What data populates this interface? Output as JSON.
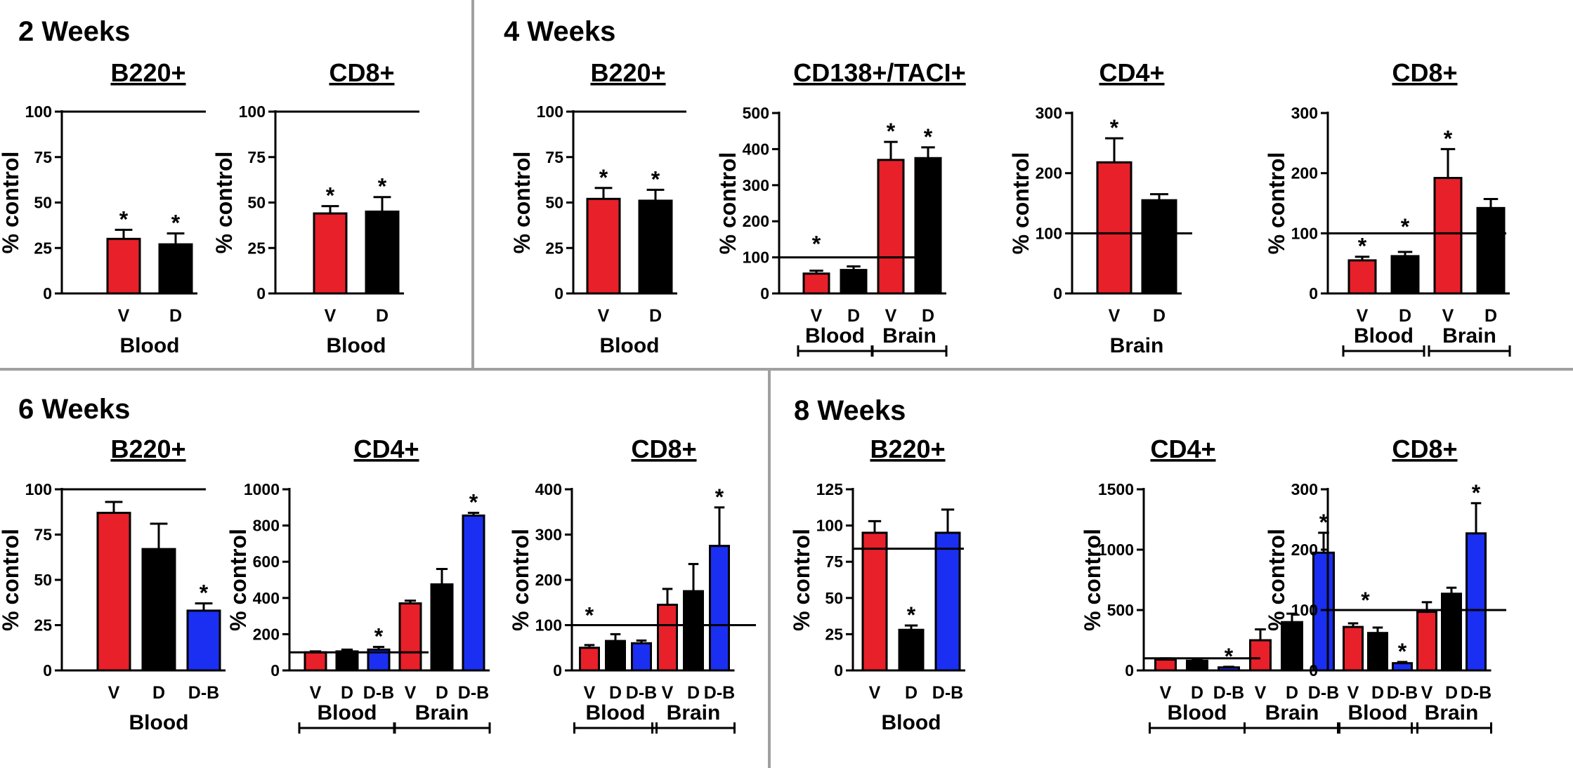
{
  "sections": [
    {
      "title": "2 Weeks"
    },
    {
      "title": "4 Weeks"
    },
    {
      "title": "6 Weeks"
    },
    {
      "title": "8 Weeks"
    }
  ],
  "colors": {
    "V": "#e8202a",
    "D": "#000000",
    "D-B": "#1a2ff2",
    "line": "#000000",
    "divider": "#a0a0a0"
  },
  "chart_data": [
    {
      "type": "bar",
      "section": "2 Weeks",
      "title": "B220+",
      "ylabel": "% control",
      "ylim": [
        0,
        100
      ],
      "yticks": [
        "0",
        "25",
        "50",
        "75",
        "100"
      ],
      "reference_line": 100,
      "categories": [
        "V",
        "D"
      ],
      "colors": [
        "V",
        "D"
      ],
      "values": [
        30,
        27
      ],
      "errors": [
        5,
        6
      ],
      "significant": [
        true,
        true
      ],
      "groups": [
        {
          "label": "Blood",
          "from": 0,
          "to": 1
        }
      ],
      "group_brackets": false,
      "extra_stars": []
    },
    {
      "type": "bar",
      "section": "2 Weeks",
      "title": "CD8+",
      "ylabel": "% control",
      "ylim": [
        0,
        100
      ],
      "yticks": [
        "0",
        "25",
        "50",
        "75",
        "100"
      ],
      "reference_line": 100,
      "categories": [
        "V",
        "D"
      ],
      "colors": [
        "V",
        "D"
      ],
      "values": [
        44,
        45
      ],
      "errors": [
        4,
        8
      ],
      "significant": [
        true,
        true
      ],
      "groups": [
        {
          "label": "Blood",
          "from": 0,
          "to": 1
        }
      ],
      "group_brackets": false,
      "extra_stars": []
    },
    {
      "type": "bar",
      "section": "4 Weeks",
      "title": "B220+",
      "ylabel": "% control",
      "ylim": [
        0,
        100
      ],
      "yticks": [
        "0",
        "25",
        "50",
        "75",
        "100"
      ],
      "reference_line": 100,
      "categories": [
        "V",
        "D"
      ],
      "colors": [
        "V",
        "D"
      ],
      "values": [
        52,
        51
      ],
      "errors": [
        6,
        6
      ],
      "significant": [
        true,
        true
      ],
      "groups": [
        {
          "label": "Blood",
          "from": 0,
          "to": 1
        }
      ],
      "group_brackets": false,
      "extra_stars": []
    },
    {
      "type": "bar",
      "section": "4 Weeks",
      "title": "CD138+/TACI+",
      "ylabel": "% control",
      "ylim": [
        0,
        500
      ],
      "yticks": [
        "0",
        "100",
        "200",
        "300",
        "400",
        "500"
      ],
      "reference_line": 100,
      "categories": [
        "V",
        "D",
        "V",
        "D"
      ],
      "colors": [
        "V",
        "D",
        "V",
        "D"
      ],
      "values": [
        55,
        65,
        370,
        375
      ],
      "errors": [
        8,
        10,
        50,
        30
      ],
      "significant": [
        false,
        false,
        true,
        true
      ],
      "groups": [
        {
          "label": "Blood",
          "from": 0,
          "to": 1
        },
        {
          "label": "Brain",
          "from": 2,
          "to": 3
        }
      ],
      "group_brackets": true,
      "extra_stars": [
        {
          "x": 0,
          "y": 135
        }
      ]
    },
    {
      "type": "bar",
      "section": "4 Weeks",
      "title": "CD4+",
      "ylabel": "% control",
      "ylim": [
        0,
        300
      ],
      "yticks": [
        "0",
        "100",
        "200",
        "300"
      ],
      "reference_line": 100,
      "categories": [
        "V",
        "D"
      ],
      "colors": [
        "V",
        "D"
      ],
      "values": [
        218,
        155
      ],
      "errors": [
        40,
        10
      ],
      "significant": [
        true,
        false
      ],
      "groups": [
        {
          "label": "Brain",
          "from": 0,
          "to": 1
        }
      ],
      "group_brackets": false,
      "extra_stars": []
    },
    {
      "type": "bar",
      "section": "4 Weeks",
      "title": "CD8+",
      "ylabel": "% control",
      "ylim": [
        0,
        300
      ],
      "yticks": [
        "0",
        "100",
        "200",
        "300"
      ],
      "reference_line": 100,
      "categories": [
        "V",
        "D",
        "V",
        "D"
      ],
      "colors": [
        "V",
        "D",
        "V",
        "D"
      ],
      "values": [
        55,
        62,
        192,
        142
      ],
      "errors": [
        6,
        7,
        48,
        15
      ],
      "significant": [
        true,
        false,
        true,
        false
      ],
      "groups": [
        {
          "label": "Blood",
          "from": 0,
          "to": 1
        },
        {
          "label": "Brain",
          "from": 2,
          "to": 3
        }
      ],
      "group_brackets": true,
      "extra_stars": [
        {
          "x": 1,
          "y": 110
        }
      ]
    },
    {
      "type": "bar",
      "section": "6 Weeks",
      "title": "B220+",
      "ylabel": "% control",
      "ylim": [
        0,
        100
      ],
      "yticks": [
        "0",
        "25",
        "50",
        "75",
        "100"
      ],
      "reference_line": 100,
      "categories": [
        "V",
        "D",
        "D-B"
      ],
      "colors": [
        "V",
        "D",
        "D-B"
      ],
      "values": [
        87,
        67,
        33
      ],
      "errors": [
        6,
        14,
        4
      ],
      "significant": [
        false,
        false,
        true
      ],
      "groups": [
        {
          "label": "Blood",
          "from": 0,
          "to": 2
        }
      ],
      "group_brackets": false,
      "extra_stars": []
    },
    {
      "type": "bar",
      "section": "6 Weeks",
      "title": "CD4+",
      "ylabel": "% control",
      "ylim": [
        0,
        1000
      ],
      "yticks": [
        "0",
        "200",
        "400",
        "600",
        "800",
        "1000"
      ],
      "reference_line": 100,
      "categories": [
        "V",
        "D",
        "D-B",
        "V",
        "D",
        "D-B"
      ],
      "colors": [
        "V",
        "D",
        "D-B",
        "V",
        "D",
        "D-B"
      ],
      "values": [
        100,
        105,
        115,
        370,
        475,
        855
      ],
      "errors": [
        5,
        10,
        15,
        15,
        85,
        15
      ],
      "significant": [
        false,
        false,
        true,
        false,
        false,
        true
      ],
      "groups": [
        {
          "label": "Blood",
          "from": 0,
          "to": 2
        },
        {
          "label": "Brain",
          "from": 3,
          "to": 5
        }
      ],
      "group_brackets": true,
      "extra_stars": []
    },
    {
      "type": "bar",
      "section": "6 Weeks",
      "title": "CD8+",
      "ylabel": "% control",
      "ylim": [
        0,
        400
      ],
      "yticks": [
        "0",
        "100",
        "200",
        "300",
        "400"
      ],
      "reference_line": 100,
      "categories": [
        "V",
        "D",
        "D-B",
        "V",
        "D",
        "D-B"
      ],
      "colors": [
        "V",
        "D",
        "D-B",
        "V",
        "D",
        "D-B"
      ],
      "values": [
        50,
        65,
        60,
        145,
        175,
        275
      ],
      "errors": [
        6,
        15,
        6,
        35,
        60,
        85
      ],
      "significant": [
        false,
        false,
        false,
        false,
        false,
        true
      ],
      "groups": [
        {
          "label": "Blood",
          "from": 0,
          "to": 2
        },
        {
          "label": "Brain",
          "from": 3,
          "to": 5
        }
      ],
      "group_brackets": true,
      "extra_stars": [
        {
          "x": 0,
          "y": 120
        }
      ]
    },
    {
      "type": "bar",
      "section": "8 Weeks",
      "title": "B220+",
      "ylabel": "% control",
      "ylim": [
        0,
        125
      ],
      "yticks": [
        "0",
        "25",
        "50",
        "75",
        "100",
        "125"
      ],
      "reference_line": 84,
      "categories": [
        "V",
        "D",
        "D-B"
      ],
      "colors": [
        "V",
        "D",
        "D-B"
      ],
      "values": [
        95,
        28,
        95
      ],
      "errors": [
        8,
        3,
        16
      ],
      "significant": [
        false,
        true,
        false
      ],
      "groups": [
        {
          "label": "Blood",
          "from": 0,
          "to": 2
        }
      ],
      "group_brackets": false,
      "extra_stars": []
    },
    {
      "type": "bar",
      "section": "8 Weeks",
      "title": "CD4+",
      "ylabel": "% control",
      "ylim": [
        0,
        1500
      ],
      "yticks": [
        "0",
        "500",
        "1000",
        "1500"
      ],
      "reference_line": 100,
      "categories": [
        "V",
        "D",
        "D-B",
        "V",
        "D",
        "D-B"
      ],
      "colors": [
        "V",
        "D",
        "D-B",
        "V",
        "D",
        "D-B"
      ],
      "values": [
        90,
        80,
        25,
        250,
        400,
        975
      ],
      "errors": [
        10,
        10,
        5,
        90,
        70,
        165
      ],
      "significant": [
        false,
        false,
        true,
        false,
        false,
        true
      ],
      "groups": [
        {
          "label": "Blood",
          "from": 0,
          "to": 2
        },
        {
          "label": "Brain",
          "from": 3,
          "to": 5
        }
      ],
      "group_brackets": true,
      "extra_stars": []
    },
    {
      "type": "bar",
      "section": "8 Weeks",
      "title": "CD8+",
      "ylabel": "% control",
      "ylim": [
        0,
        300
      ],
      "yticks": [
        "0",
        "100",
        "200",
        "300"
      ],
      "reference_line": 100,
      "categories": [
        "V",
        "D",
        "D-B",
        "V",
        "D",
        "D-B"
      ],
      "colors": [
        "V",
        "D",
        "D-B",
        "V",
        "D",
        "D-B"
      ],
      "values": [
        72,
        62,
        12,
        97,
        127,
        227
      ],
      "errors": [
        6,
        9,
        2,
        16,
        10,
        50
      ],
      "significant": [
        false,
        false,
        true,
        false,
        false,
        true
      ],
      "groups": [
        {
          "label": "Blood",
          "from": 0,
          "to": 2
        },
        {
          "label": "Brain",
          "from": 3,
          "to": 5
        }
      ],
      "group_brackets": true,
      "extra_stars": [
        {
          "x": 0.5,
          "y": 115
        }
      ]
    }
  ]
}
